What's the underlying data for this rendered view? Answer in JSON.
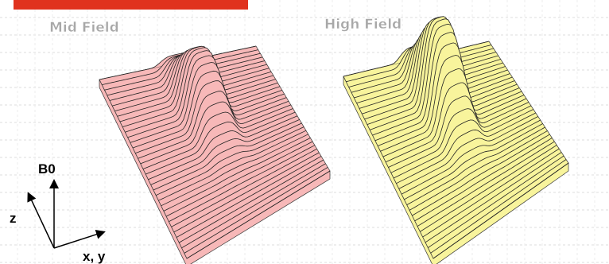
{
  "panels": [
    {
      "label": "Mid Field"
    },
    {
      "label": "High Field"
    }
  ],
  "axes": {
    "vertical": "B0",
    "left": "z",
    "bottom": "x, y"
  }
}
